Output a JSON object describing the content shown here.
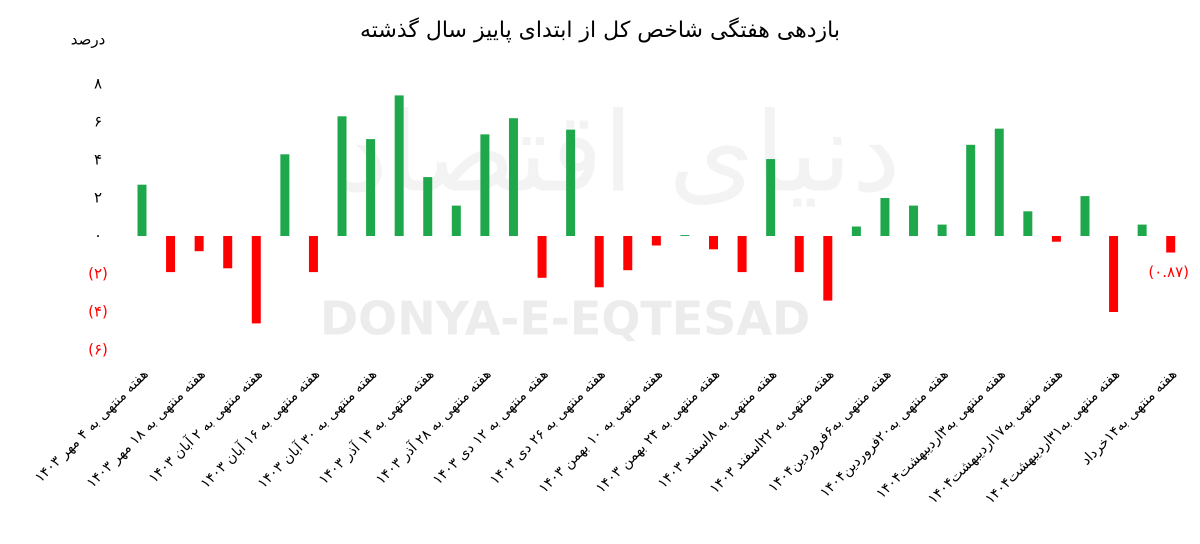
{
  "chart_data": {
    "type": "bar",
    "title": "بازدهی هفتگی شاخص کل از ابتدای پاییز سال گذشته",
    "y_label": "درصد",
    "watermark": "DONYA-E-EQTESAD",
    "watermark_fa": "دنیای اقتصاد",
    "categories": [
      "هفته منتهی به ۴ مهر ۱۴۰۳",
      null,
      "هفته منتهی به ۱۸ مهر ۱۴۰۳",
      null,
      "هفته منتهی به ۲ آبان ۱۴۰۳",
      null,
      "هفته منتهی به ۱۶ آبان ۱۴۰۳",
      null,
      "هفته منتهی به ۳۰ آبان ۱۴۰۳",
      null,
      "هفته منتهی به ۱۴ آذر ۱۴۰۳",
      null,
      "هفته منتهی به ۲۸ آذر ۱۴۰۳",
      null,
      "هفته منتهی به ۱۲ دی ۱۴۰۳",
      null,
      "هفته منتهی به ۲۶ دی ۱۴۰۳",
      null,
      "هفته منتهی به ۱۰ بهمن ۱۴۰۳",
      null,
      "هفته منتهی به ۲۴ بهمن ۱۴۰۳",
      null,
      "هفته منتهی به ۸اسفند ۱۴۰۳",
      null,
      "هفته منتهی به ۲۲اسفند ۱۴۰۳",
      null,
      "هفته منتهی به۶فروردین۱۴۰۴",
      null,
      "هفته منتهی به۲۰فروردین۱۴۰۴",
      null,
      "هفته منتهی به۳اردیبهشت۱۴۰۴",
      null,
      "هفته منتهی به۱۷اردیبهشت۱۴۰۴",
      null,
      "هفته منتهی به۳۱اردیبهشت۱۴۰۴",
      null,
      "هفته منتهی به۱۴خرداد"
    ],
    "values": [
      2.7,
      -1.9,
      -0.8,
      -1.7,
      -4.6,
      4.3,
      -1.9,
      6.3,
      5.1,
      7.4,
      3.1,
      1.6,
      5.35,
      6.2,
      -2.2,
      5.6,
      -2.7,
      -1.8,
      -0.5,
      0.05,
      -0.7,
      -1.9,
      4.05,
      -1.9,
      -3.4,
      0.5,
      2.0,
      1.6,
      0.6,
      4.8,
      5.65,
      1.3,
      -0.3,
      2.1,
      -4.0,
      0.6,
      -0.87
    ],
    "value_labels": [
      null,
      null,
      null,
      null,
      null,
      null,
      null,
      null,
      null,
      null,
      null,
      null,
      null,
      null,
      null,
      null,
      null,
      null,
      null,
      null,
      null,
      null,
      null,
      null,
      null,
      null,
      null,
      null,
      null,
      null,
      null,
      null,
      null,
      null,
      null,
      null,
      "(۰.۸۷)"
    ],
    "positive_color": "#1fa84b",
    "negative_color": "#ff0000",
    "ylim": [
      -6,
      8
    ],
    "yticks": [
      {
        "value": -6,
        "label": "(۶)"
      },
      {
        "value": -4,
        "label": "(۴)"
      },
      {
        "value": -2,
        "label": "(۲)"
      },
      {
        "value": 0,
        "label": "۰"
      },
      {
        "value": 2,
        "label": "۲"
      },
      {
        "value": 4,
        "label": "۴"
      },
      {
        "value": 6,
        "label": "۶"
      },
      {
        "value": 8,
        "label": "۸"
      }
    ],
    "grid": false
  }
}
